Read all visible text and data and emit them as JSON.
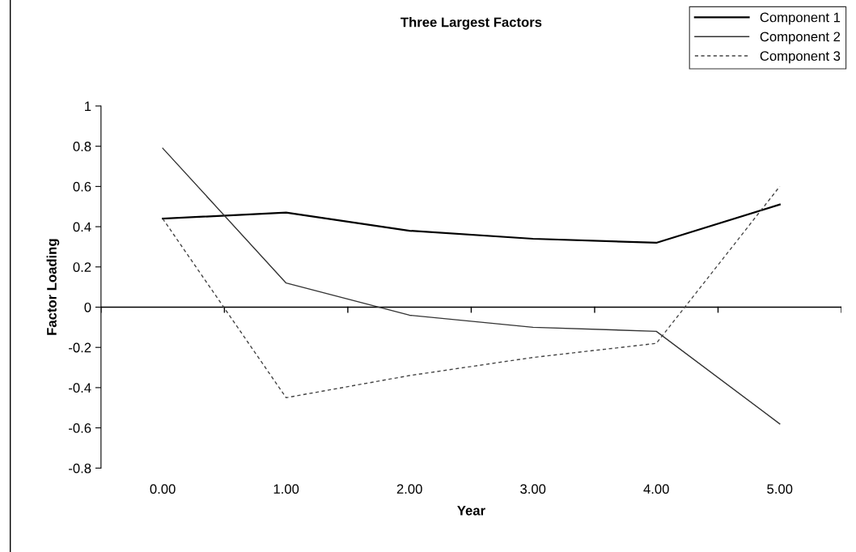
{
  "chart_data": {
    "type": "line",
    "title": "Three Largest Factors",
    "xlabel": "Year",
    "ylabel": "Factor Loading",
    "categories": [
      "0.00",
      "1.00",
      "2.00",
      "3.00",
      "4.00",
      "5.00"
    ],
    "series": [
      {
        "name": "Component 1",
        "color": "#000000",
        "line_style": "solid",
        "values": [
          0.44,
          0.47,
          0.38,
          0.34,
          0.32,
          0.51
        ]
      },
      {
        "name": "Component 2",
        "color": "#333333",
        "line_style": "solid",
        "values": [
          0.79,
          0.12,
          -0.04,
          -0.1,
          -0.12,
          -0.58
        ]
      },
      {
        "name": "Component 3",
        "color": "#444444",
        "line_style": "dashed",
        "values": [
          0.44,
          -0.45,
          -0.34,
          -0.25,
          -0.18,
          0.6
        ]
      }
    ],
    "ylim": [
      -0.8,
      1
    ],
    "yticks": [
      -0.8,
      -0.6,
      -0.4,
      -0.2,
      0,
      0.2,
      0.4,
      0.6,
      0.8,
      1
    ],
    "ref_lines": [
      {
        "axis": "y",
        "value": 0,
        "color": "#000000"
      }
    ],
    "grid": false,
    "legend": "top right",
    "marker": "none"
  }
}
